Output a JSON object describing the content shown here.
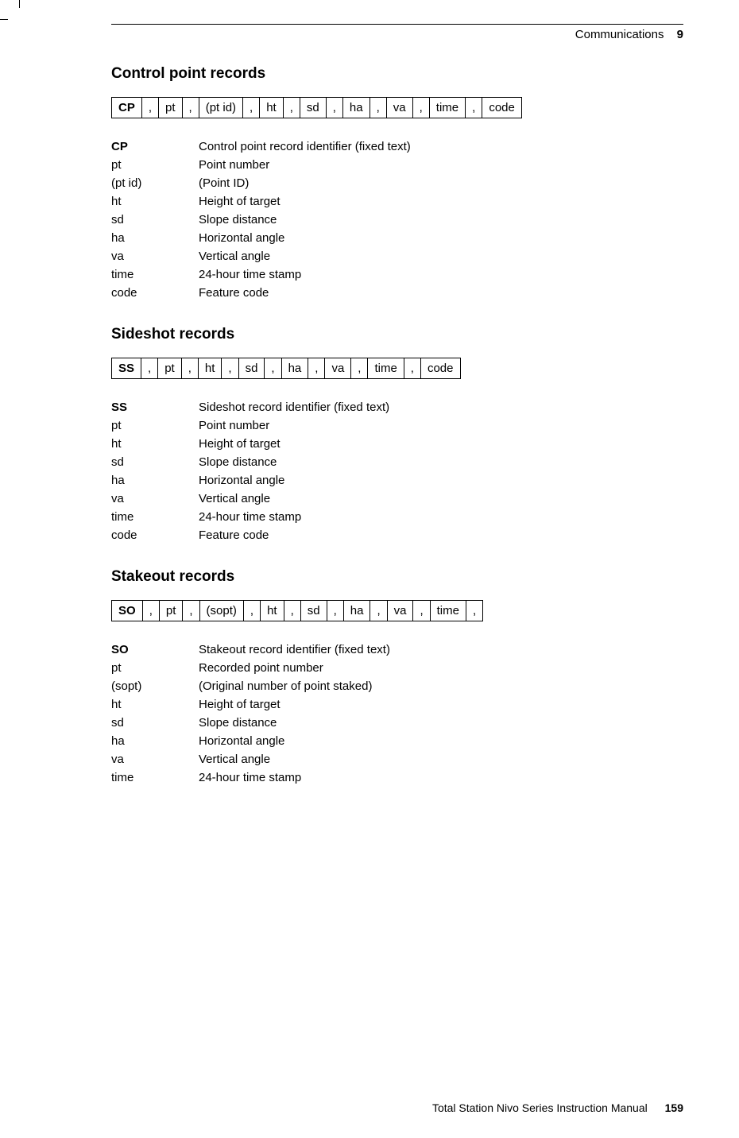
{
  "header": {
    "chapter": "Communications",
    "chapnum": "9"
  },
  "sections": [
    {
      "title": "Control point records",
      "cells": [
        {
          "t": "CP",
          "b": true
        },
        {
          "t": ","
        },
        {
          "t": "pt"
        },
        {
          "t": ","
        },
        {
          "t": "(pt id)"
        },
        {
          "t": ","
        },
        {
          "t": "ht"
        },
        {
          "t": ","
        },
        {
          "t": "sd"
        },
        {
          "t": ","
        },
        {
          "t": "ha"
        },
        {
          "t": ","
        },
        {
          "t": "va"
        },
        {
          "t": ","
        },
        {
          "t": "time"
        },
        {
          "t": ","
        },
        {
          "t": "code"
        }
      ],
      "defs": [
        {
          "k": "CP",
          "v": "Control point record identifier (fixed text)",
          "b": true
        },
        {
          "k": "pt",
          "v": "Point number"
        },
        {
          "k": "(pt id)",
          "v": "(Point ID)"
        },
        {
          "k": "ht",
          "v": "Height of target"
        },
        {
          "k": "sd",
          "v": "Slope distance"
        },
        {
          "k": "ha",
          "v": "Horizontal angle"
        },
        {
          "k": "va",
          "v": "Vertical angle"
        },
        {
          "k": "time",
          "v": "24-hour time stamp"
        },
        {
          "k": "code",
          "v": "Feature code"
        }
      ]
    },
    {
      "title": "Sideshot records",
      "cells": [
        {
          "t": "SS",
          "b": true
        },
        {
          "t": ","
        },
        {
          "t": "pt"
        },
        {
          "t": ","
        },
        {
          "t": "ht"
        },
        {
          "t": ","
        },
        {
          "t": "sd"
        },
        {
          "t": ","
        },
        {
          "t": "ha"
        },
        {
          "t": ","
        },
        {
          "t": "va"
        },
        {
          "t": ","
        },
        {
          "t": "time"
        },
        {
          "t": ","
        },
        {
          "t": "code"
        }
      ],
      "defs": [
        {
          "k": "SS",
          "v": "Sideshot record identifier (fixed text)",
          "b": true
        },
        {
          "k": "pt",
          "v": "Point number"
        },
        {
          "k": "ht",
          "v": "Height of target"
        },
        {
          "k": "sd",
          "v": "Slope distance"
        },
        {
          "k": "ha",
          "v": "Horizontal angle"
        },
        {
          "k": "va",
          "v": "Vertical angle"
        },
        {
          "k": "time",
          "v": "24-hour time stamp"
        },
        {
          "k": "code",
          "v": "Feature code"
        }
      ]
    },
    {
      "title": "Stakeout records",
      "cells": [
        {
          "t": "SO",
          "b": true
        },
        {
          "t": ","
        },
        {
          "t": "pt"
        },
        {
          "t": ","
        },
        {
          "t": "(sopt)"
        },
        {
          "t": ","
        },
        {
          "t": "ht"
        },
        {
          "t": ","
        },
        {
          "t": "sd"
        },
        {
          "t": ","
        },
        {
          "t": "ha"
        },
        {
          "t": ","
        },
        {
          "t": "va"
        },
        {
          "t": ","
        },
        {
          "t": "time"
        },
        {
          "t": ","
        }
      ],
      "defs": [
        {
          "k": "SO",
          "v": "Stakeout record identifier (fixed text)",
          "b": true
        },
        {
          "k": "pt",
          "v": "Recorded point number"
        },
        {
          "k": "(sopt)",
          "v": "(Original number of point staked)"
        },
        {
          "k": "ht",
          "v": "Height of target"
        },
        {
          "k": "sd",
          "v": "Slope distance"
        },
        {
          "k": "ha",
          "v": "Horizontal angle"
        },
        {
          "k": "va",
          "v": "Vertical angle"
        },
        {
          "k": "time",
          "v": "24-hour time stamp"
        }
      ]
    }
  ],
  "footer": {
    "text": "Total Station Nivo Series Instruction Manual",
    "page": "159"
  }
}
